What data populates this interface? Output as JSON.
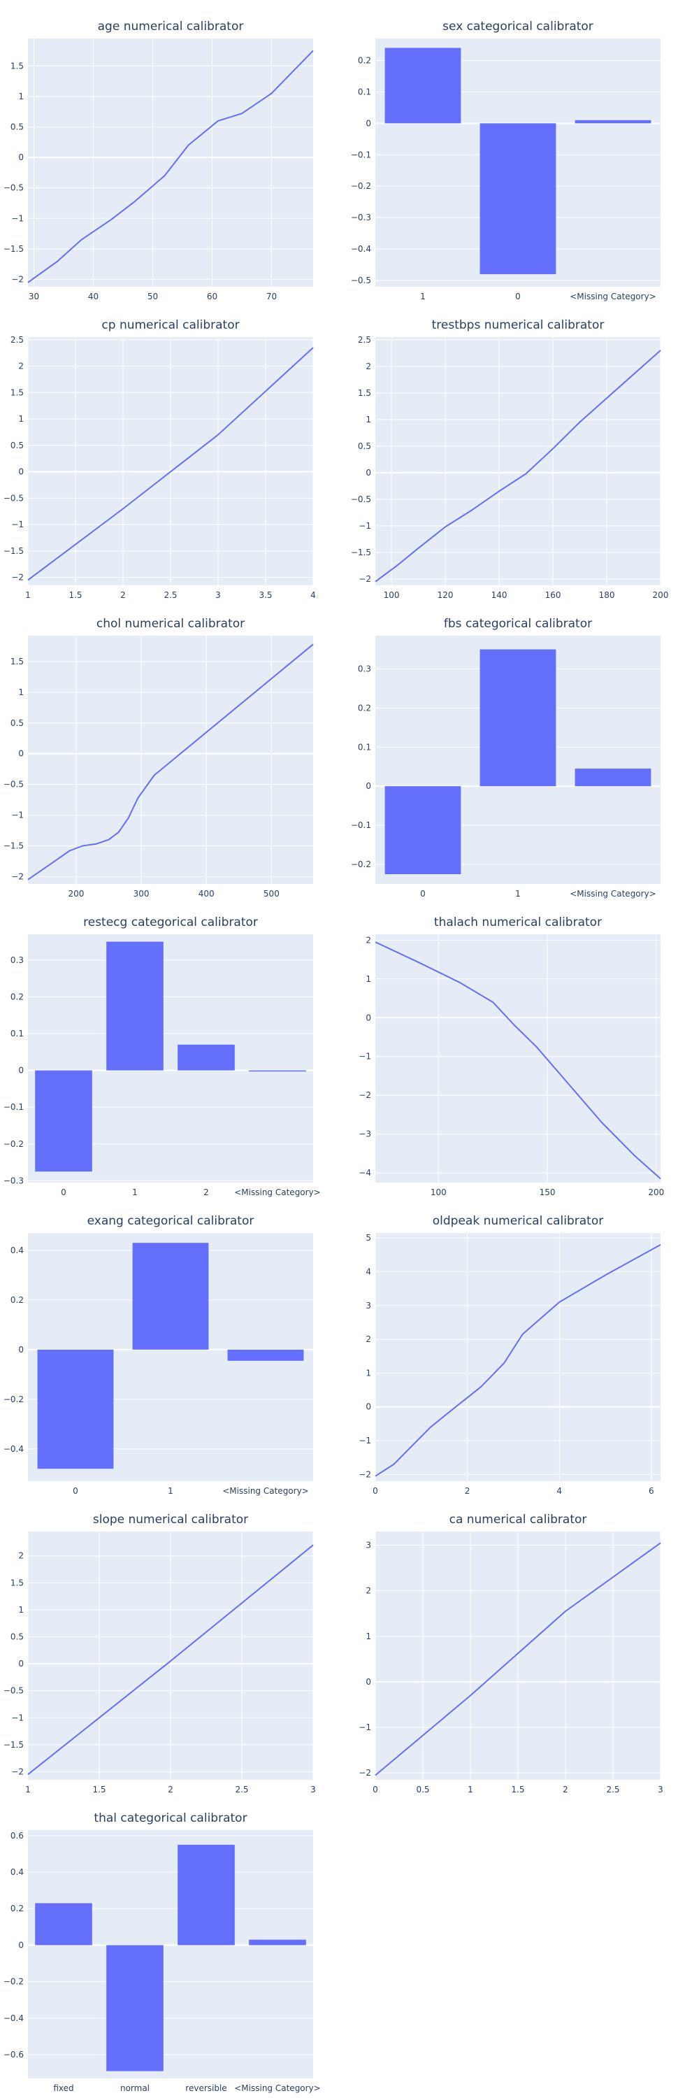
{
  "colors": {
    "series": "#636efa",
    "plot_bg": "#e5ecf6",
    "grid": "#ffffff",
    "text": "#2a3f5f",
    "page_bg": "#ffffff"
  },
  "chart_data": [
    {
      "type": "line",
      "title": "age numerical calibrator",
      "x": [
        29,
        34,
        38,
        43,
        47,
        52,
        56,
        61,
        65,
        70,
        77
      ],
      "y": [
        -2.05,
        -1.7,
        -1.35,
        -1.02,
        -0.72,
        -0.3,
        0.2,
        0.6,
        0.72,
        1.05,
        1.75
      ],
      "xlim": [
        29,
        77
      ],
      "ylim": [
        -2.12,
        1.95
      ],
      "xticks": [
        30,
        40,
        50,
        60,
        70
      ],
      "yticks": [
        -2,
        -1.5,
        -1,
        -0.5,
        0,
        0.5,
        1,
        1.5
      ],
      "grid": true
    },
    {
      "type": "bar",
      "title": "sex categorical calibrator",
      "categories": [
        "1",
        "0",
        "<Missing Category>"
      ],
      "values": [
        0.24,
        -0.48,
        0.01
      ],
      "ylim": [
        -0.52,
        0.27
      ],
      "yticks": [
        -0.5,
        -0.4,
        -0.3,
        -0.2,
        -0.1,
        0,
        0.1,
        0.2
      ],
      "grid": true
    },
    {
      "type": "line",
      "title": "cp numerical calibrator",
      "x": [
        1,
        2,
        3,
        4
      ],
      "y": [
        -2.05,
        -0.7,
        0.7,
        2.35
      ],
      "xlim": [
        1,
        4
      ],
      "ylim": [
        -2.15,
        2.55
      ],
      "xticks": [
        1,
        1.5,
        2,
        2.5,
        3,
        3.5,
        4
      ],
      "yticks": [
        -2,
        -1.5,
        -1,
        -0.5,
        0,
        0.5,
        1,
        1.5,
        2,
        2.5
      ],
      "grid": true
    },
    {
      "type": "line",
      "title": "trestbps numerical calibrator",
      "x": [
        94,
        102,
        110,
        120,
        130,
        140,
        150,
        160,
        170,
        180,
        200
      ],
      "y": [
        -2.05,
        -1.75,
        -1.42,
        -1.02,
        -0.7,
        -0.35,
        -0.02,
        0.45,
        0.95,
        1.4,
        2.3
      ],
      "xlim": [
        94,
        200
      ],
      "ylim": [
        -2.12,
        2.55
      ],
      "xticks": [
        100,
        120,
        140,
        160,
        180,
        200
      ],
      "yticks": [
        -2,
        -1.5,
        -1,
        -0.5,
        0,
        0.5,
        1,
        1.5,
        2,
        2.5
      ],
      "grid": true
    },
    {
      "type": "line",
      "title": "chol numerical calibrator",
      "x": [
        126,
        160,
        190,
        210,
        230,
        250,
        265,
        280,
        295,
        320,
        564
      ],
      "y": [
        -2.05,
        -1.8,
        -1.58,
        -1.5,
        -1.47,
        -1.4,
        -1.28,
        -1.05,
        -0.72,
        -0.35,
        1.78
      ],
      "xlim": [
        126,
        564
      ],
      "ylim": [
        -2.12,
        1.92
      ],
      "xticks": [
        200,
        300,
        400,
        500
      ],
      "yticks": [
        -2,
        -1.5,
        -1,
        -0.5,
        0,
        0.5,
        1,
        1.5
      ],
      "grid": true
    },
    {
      "type": "bar",
      "title": "fbs categorical calibrator",
      "categories": [
        "0",
        "1",
        "<Missing Category>"
      ],
      "values": [
        -0.225,
        0.35,
        0.045
      ],
      "ylim": [
        -0.25,
        0.385
      ],
      "yticks": [
        -0.2,
        -0.1,
        0,
        0.1,
        0.2,
        0.3
      ],
      "grid": true
    },
    {
      "type": "bar",
      "title": "restecg categorical calibrator",
      "categories": [
        "0",
        "1",
        "2",
        "<Missing Category>"
      ],
      "values": [
        -0.275,
        0.35,
        0.07,
        -0.003
      ],
      "ylim": [
        -0.305,
        0.37
      ],
      "yticks": [
        -0.3,
        -0.2,
        -0.1,
        0,
        0.1,
        0.2,
        0.3
      ],
      "grid": true
    },
    {
      "type": "line",
      "title": "thalach numerical calibrator",
      "x": [
        71,
        90,
        110,
        125,
        135,
        145,
        155,
        165,
        175,
        190,
        202
      ],
      "y": [
        1.95,
        1.45,
        0.9,
        0.4,
        -0.2,
        -0.75,
        -1.4,
        -2.05,
        -2.7,
        -3.55,
        -4.15
      ],
      "xlim": [
        71,
        202
      ],
      "ylim": [
        -4.25,
        2.15
      ],
      "xticks": [
        100,
        150,
        200
      ],
      "yticks": [
        -4,
        -3,
        -2,
        -1,
        0,
        1,
        2
      ],
      "grid": true
    },
    {
      "type": "bar",
      "title": "exang categorical calibrator",
      "categories": [
        "0",
        "1",
        "<Missing Category>"
      ],
      "values": [
        -0.48,
        0.43,
        -0.045
      ],
      "ylim": [
        -0.53,
        0.47
      ],
      "yticks": [
        -0.4,
        -0.2,
        0,
        0.2,
        0.4
      ],
      "grid": true
    },
    {
      "type": "line",
      "title": "oldpeak numerical calibrator",
      "x": [
        0,
        0.4,
        0.8,
        1.2,
        1.7,
        2.3,
        2.8,
        3.2,
        4,
        5,
        6.2
      ],
      "y": [
        -2.05,
        -1.7,
        -1.15,
        -0.6,
        -0.05,
        0.6,
        1.3,
        2.15,
        3.1,
        3.9,
        4.8
      ],
      "xlim": [
        0,
        6.2
      ],
      "ylim": [
        -2.2,
        5.15
      ],
      "xticks": [
        0,
        2,
        4,
        6
      ],
      "yticks": [
        -2,
        -1,
        0,
        1,
        2,
        3,
        4,
        5
      ],
      "grid": true
    },
    {
      "type": "line",
      "title": "slope numerical calibrator",
      "x": [
        1,
        2,
        3
      ],
      "y": [
        -2.05,
        0.05,
        2.2
      ],
      "xlim": [
        1,
        3
      ],
      "ylim": [
        -2.15,
        2.45
      ],
      "xticks": [
        1,
        1.5,
        2,
        2.5,
        3
      ],
      "yticks": [
        -2,
        -1.5,
        -1,
        -0.5,
        0,
        0.5,
        1,
        1.5,
        2
      ],
      "grid": true
    },
    {
      "type": "line",
      "title": "ca numerical calibrator",
      "x": [
        0,
        1,
        2,
        3
      ],
      "y": [
        -2.05,
        -0.3,
        1.55,
        3.05
      ],
      "xlim": [
        0,
        3
      ],
      "ylim": [
        -2.15,
        3.3
      ],
      "xticks": [
        0,
        0.5,
        1,
        1.5,
        2,
        2.5,
        3
      ],
      "yticks": [
        -2,
        -1,
        0,
        1,
        2,
        3
      ],
      "grid": true
    },
    {
      "type": "bar",
      "title": "thal categorical calibrator",
      "categories": [
        "fixed",
        "normal",
        "reversible",
        "<Missing Category>"
      ],
      "values": [
        0.23,
        -0.69,
        0.55,
        0.03
      ],
      "ylim": [
        -0.73,
        0.63
      ],
      "yticks": [
        -0.6,
        -0.4,
        -0.2,
        0,
        0.2,
        0.4,
        0.6
      ],
      "grid": true
    }
  ]
}
